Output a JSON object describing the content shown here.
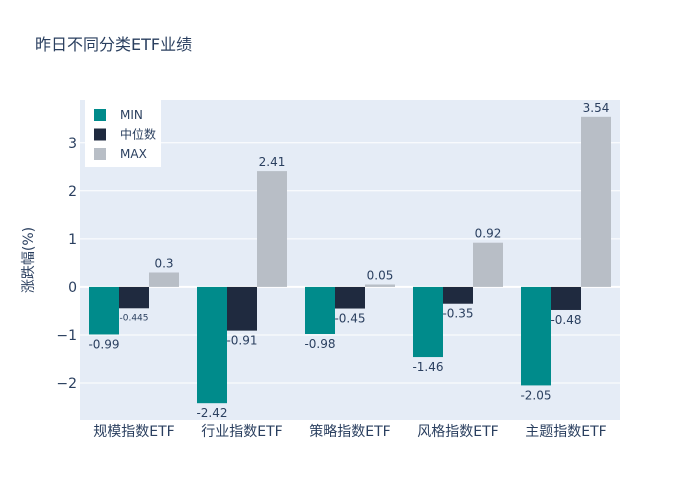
{
  "chart_data": {
    "type": "bar",
    "title": "昨日不同分类ETF业绩",
    "xlabel": "",
    "ylabel": "涨跌幅(%)",
    "categories": [
      "规模指数ETF",
      "行业指数ETF",
      "策略指数ETF",
      "风格指数ETF",
      "主题指数ETF"
    ],
    "series": [
      {
        "name": "MIN",
        "color": "#008b8b",
        "values": [
          -0.99,
          -2.42,
          -0.98,
          -1.46,
          -2.05
        ],
        "labels": [
          "-0.99",
          "-2.42",
          "-0.98",
          "-1.46",
          "-2.05"
        ]
      },
      {
        "name": "中位数",
        "color": "#1f2a3f",
        "values": [
          -0.445,
          -0.91,
          -0.45,
          -0.35,
          -0.48
        ],
        "labels": [
          "-0.445",
          "-0.91",
          "-0.45",
          "-0.35",
          "-0.48"
        ]
      },
      {
        "name": "MAX",
        "color": "#b8bec6",
        "values": [
          0.3,
          2.41,
          0.05,
          0.92,
          3.54
        ],
        "labels": [
          "0.3",
          "2.41",
          "0.05",
          "0.92",
          "3.54"
        ]
      }
    ],
    "ylim": [
      -2.77,
      3.89
    ],
    "yticks": [
      -2,
      -1,
      0,
      1,
      2,
      3
    ],
    "ytick_labels": [
      "−2",
      "−1",
      "0",
      "1",
      "2",
      "3"
    ],
    "grid": true,
    "legend_position": "top-left",
    "colors": {
      "plot_bg": "#e5ecf6",
      "grid": "#ffffff",
      "text": "#2a3f5f"
    }
  }
}
